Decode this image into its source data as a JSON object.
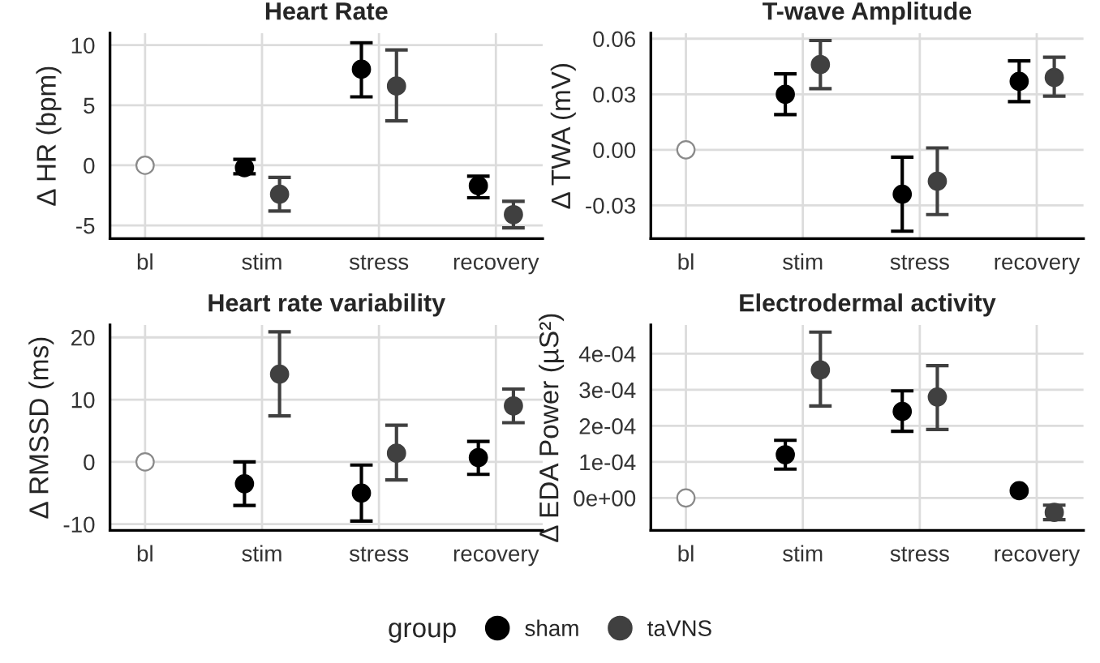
{
  "chart_data": [
    {
      "type": "scatter",
      "title": "Heart Rate",
      "ylabel": "Δ HR (bpm)",
      "categories": [
        "bl",
        "stim",
        "stress",
        "recovery"
      ],
      "ylim": [
        -6.1,
        11
      ],
      "yticks": [
        -5,
        0,
        5,
        10
      ],
      "grid": true,
      "marker": "circle",
      "series": [
        {
          "color": "#ffffff",
          "values": [
            0,
            null,
            null,
            null
          ]
        },
        {
          "color": "#000000",
          "values": [
            null,
            -0.2,
            8.0,
            -1.7
          ],
          "errors": [
            null,
            [
              -0.7,
              0.5
            ],
            [
              5.7,
              10.2
            ],
            [
              -2.7,
              -0.9
            ]
          ]
        },
        {
          "color": "#404040",
          "values": [
            null,
            -2.4,
            6.6,
            -4.1
          ],
          "errors": [
            null,
            [
              -3.8,
              -1.0
            ],
            [
              3.7,
              9.6
            ],
            [
              -5.2,
              -3.0
            ]
          ]
        }
      ]
    },
    {
      "type": "scatter",
      "title": "T-wave Amplitude",
      "ylabel": "Δ TWA (mV)",
      "categories": [
        "bl",
        "stim",
        "stress",
        "recovery"
      ],
      "ylim": [
        -0.048,
        0.063
      ],
      "yticks": [
        {
          "value": -0.03,
          "label": "-0.03"
        },
        {
          "value": 0,
          "label": "0.00"
        },
        {
          "value": 0.03,
          "label": "0.03"
        },
        {
          "value": 0.06,
          "label": "0.06"
        }
      ],
      "grid": true,
      "marker": "circle",
      "series": [
        {
          "color": "#ffffff",
          "values": [
            0,
            null,
            null,
            null
          ]
        },
        {
          "color": "#000000",
          "values": [
            null,
            0.03,
            -0.024,
            0.037
          ],
          "errors": [
            null,
            [
              0.019,
              0.041
            ],
            [
              -0.044,
              -0.004
            ],
            [
              0.026,
              0.048
            ]
          ]
        },
        {
          "color": "#404040",
          "values": [
            null,
            0.046,
            -0.017,
            0.039
          ],
          "errors": [
            null,
            [
              0.033,
              0.059
            ],
            [
              -0.035,
              0.001
            ],
            [
              0.029,
              0.05
            ]
          ]
        }
      ]
    },
    {
      "type": "scatter",
      "title": "Heart rate variability",
      "ylabel": "Δ RMSSD (ms)",
      "categories": [
        "bl",
        "stim",
        "stress",
        "recovery"
      ],
      "ylim": [
        -11,
        22
      ],
      "yticks": [
        -10,
        0,
        10,
        20
      ],
      "grid": true,
      "marker": "circle",
      "series": [
        {
          "color": "#ffffff",
          "values": [
            0,
            null,
            null,
            null
          ]
        },
        {
          "color": "#000000",
          "values": [
            null,
            -3.5,
            -5.0,
            0.7
          ],
          "errors": [
            null,
            [
              -7.0,
              0.0
            ],
            [
              -9.5,
              -0.5
            ],
            [
              -2.0,
              3.3
            ]
          ]
        },
        {
          "color": "#404040",
          "values": [
            null,
            14.1,
            1.4,
            9.0
          ],
          "errors": [
            null,
            [
              7.4,
              20.9
            ],
            [
              -2.9,
              5.9
            ],
            [
              6.3,
              11.7
            ]
          ]
        }
      ]
    },
    {
      "type": "scatter",
      "title": "Electrodermal activity",
      "ylabel": "Δ EDA Power (µS²)",
      "categories": [
        "bl",
        "stim",
        "stress",
        "recovery"
      ],
      "ylim": [
        -9e-05,
        0.00048
      ],
      "yticks": [
        {
          "value": 0,
          "label": "0e+00"
        },
        {
          "value": 0.0001,
          "label": "1e-04"
        },
        {
          "value": 0.0002,
          "label": "2e-04"
        },
        {
          "value": 0.0003,
          "label": "3e-04"
        },
        {
          "value": 0.0004,
          "label": "4e-04"
        }
      ],
      "grid": true,
      "marker": "circle",
      "legend": "bottom",
      "legend_title": "group",
      "series": [
        {
          "color": "#ffffff",
          "values": [
            0,
            null,
            null,
            null
          ]
        },
        {
          "name": "sham",
          "color": "#000000",
          "values": [
            null,
            0.00012,
            0.00024,
            2e-05
          ],
          "errors": [
            null,
            [
              8e-05,
              0.00016
            ],
            [
              0.000185,
              0.000297
            ],
            null
          ]
        },
        {
          "name": "taVNS",
          "color": "#404040",
          "values": [
            null,
            0.000355,
            0.00028,
            -4e-05
          ],
          "errors": [
            null,
            [
              0.000255,
              0.00046
            ],
            [
              0.00019,
              0.000367
            ],
            [
              -6e-05,
              -2e-05
            ]
          ]
        }
      ]
    }
  ]
}
